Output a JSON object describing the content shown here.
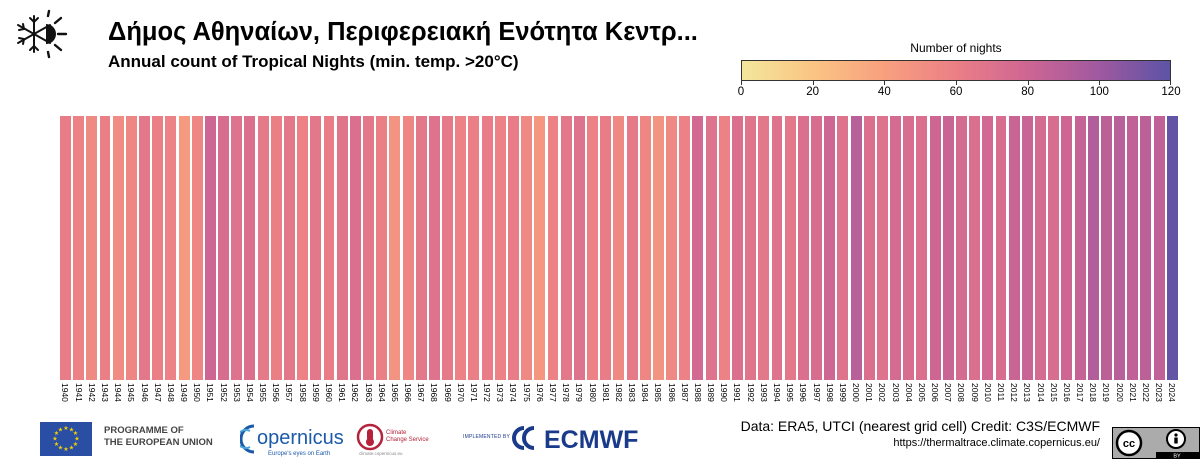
{
  "header": {
    "title": "Δήμος Αθηναίων, Περιφερειακή Ενότητα Κεντρ...",
    "subtitle": "Annual count of Tropical Nights (min. temp. >20°C)"
  },
  "legend": {
    "title": "Number of nights",
    "ticks": [
      "0",
      "20",
      "40",
      "60",
      "80",
      "100",
      "120"
    ],
    "min": 0,
    "max": 120,
    "colors": [
      "#f3e79b",
      "#fac484",
      "#f8a07e",
      "#eb7f86",
      "#ce6693",
      "#a059a0",
      "#5c53a5"
    ]
  },
  "chart_data": {
    "type": "heatmap",
    "title": "Annual count of Tropical Nights (min. temp. >20°C)",
    "colorbar_label": "Number of nights",
    "colorbar_range": [
      0,
      120
    ],
    "x": [
      1940,
      1941,
      1942,
      1943,
      1944,
      1945,
      1946,
      1947,
      1948,
      1949,
      1950,
      1951,
      1952,
      1953,
      1954,
      1955,
      1956,
      1957,
      1958,
      1959,
      1960,
      1961,
      1962,
      1963,
      1964,
      1965,
      1966,
      1967,
      1968,
      1969,
      1970,
      1971,
      1972,
      1973,
      1974,
      1975,
      1976,
      1977,
      1978,
      1979,
      1980,
      1981,
      1982,
      1983,
      1984,
      1985,
      1986,
      1987,
      1988,
      1989,
      1990,
      1991,
      1992,
      1993,
      1994,
      1995,
      1996,
      1997,
      1998,
      1999,
      2000,
      2001,
      2002,
      2003,
      2004,
      2005,
      2006,
      2007,
      2008,
      2009,
      2010,
      2011,
      2012,
      2013,
      2014,
      2015,
      2016,
      2017,
      2018,
      2019,
      2020,
      2021,
      2022,
      2023,
      2024
    ],
    "values": [
      62,
      58,
      54,
      60,
      52,
      56,
      66,
      60,
      58,
      44,
      55,
      80,
      74,
      70,
      72,
      64,
      60,
      66,
      58,
      66,
      62,
      68,
      72,
      66,
      60,
      48,
      56,
      66,
      70,
      64,
      58,
      60,
      62,
      58,
      62,
      54,
      46,
      58,
      66,
      70,
      58,
      62,
      54,
      64,
      56,
      48,
      54,
      58,
      78,
      70,
      58,
      72,
      68,
      66,
      70,
      66,
      72,
      74,
      80,
      70,
      90,
      72,
      70,
      76,
      74,
      72,
      80,
      82,
      76,
      72,
      78,
      74,
      82,
      82,
      76,
      74,
      80,
      84,
      92,
      88,
      90,
      86,
      88,
      86,
      118
    ],
    "xlabel": "",
    "ylabel": ""
  },
  "footer": {
    "eu_line1": "PROGRAMME OF",
    "eu_line2": "THE EUROPEAN UNION",
    "copernicus_name": "opernicus",
    "copernicus_tagline": "Europe's eyes on Earth",
    "c3s_line1": "Climate",
    "c3s_line2": "Change Service",
    "c3s_url": "climate.copernicus.eu",
    "implemented_by": "IMPLEMENTED BY",
    "ecmwf_name": "ECMWF",
    "data_credit": "Data: ERA5, UTCI (nearest grid cell)   Credit: C3S/ECMWF",
    "source_url": "https://thermaltrace.climate.copernicus.eu/",
    "license_by": "BY"
  }
}
